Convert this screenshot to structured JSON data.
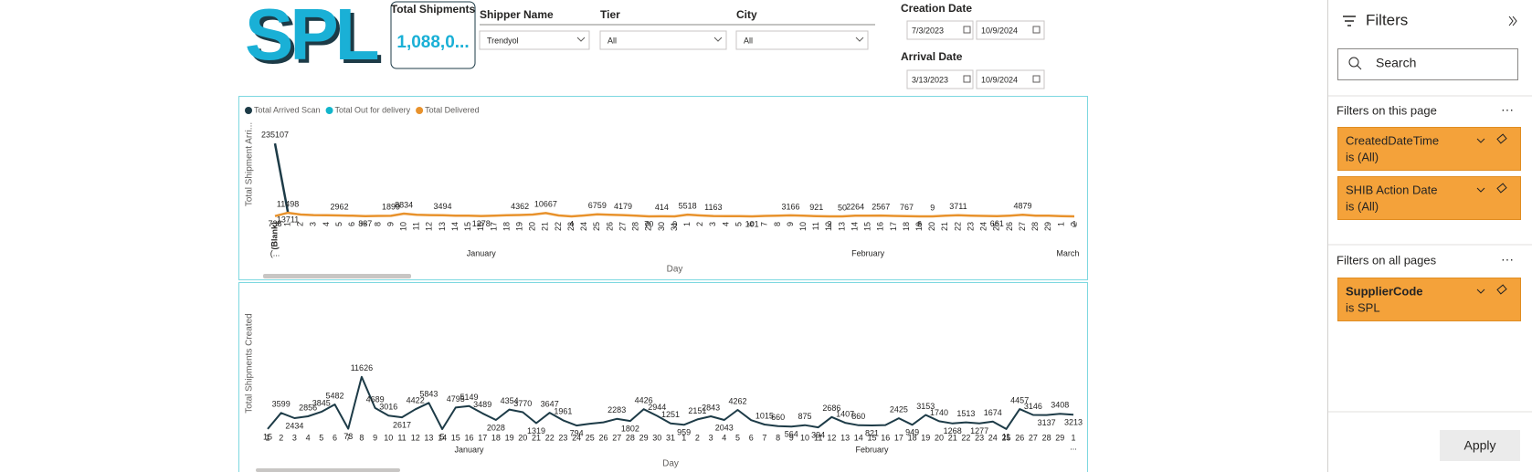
{
  "logo": {
    "text": "SPL"
  },
  "card": {
    "title": "Total Shipments",
    "value": "1,088,0..."
  },
  "slicers": [
    {
      "label": "Shipper Name",
      "value": "Trendyol"
    },
    {
      "label": "Tier",
      "value": "All"
    },
    {
      "label": "City",
      "value": "All"
    }
  ],
  "date_filters": [
    {
      "label": "Creation Date",
      "from": "7/3/2023",
      "to": "10/9/2024"
    },
    {
      "label": "Arrival Date",
      "from": "3/13/2023",
      "to": "10/9/2024"
    }
  ],
  "charts": [
    {
      "type": "line",
      "y_label": "Total Shipment Arri...",
      "x_label": "Day",
      "categories": [
        "(Blank)",
        "1",
        "2",
        "3",
        "4",
        "5",
        "6",
        "7",
        "8",
        "9",
        "10",
        "11",
        "12",
        "13",
        "14",
        "15",
        "16",
        "17",
        "18",
        "19",
        "20",
        "21",
        "22",
        "23",
        "24",
        "25",
        "26",
        "27",
        "28",
        "29",
        "30",
        "31",
        "1",
        "2",
        "3",
        "4",
        "5",
        "6",
        "7",
        "8",
        "9",
        "10",
        "11",
        "12",
        "13",
        "14",
        "15",
        "16",
        "17",
        "18",
        "19",
        "20",
        "21",
        "22",
        "23",
        "24",
        "25",
        "26",
        "27",
        "28",
        "29",
        "1",
        "2"
      ],
      "groups": [
        "(...",
        "January",
        "February",
        "March"
      ],
      "ylim": [
        0,
        250000
      ],
      "series": [
        {
          "name": "Total Arrived Scan",
          "color": "#1d3b47",
          "values": [
            235107,
            13711,
            null,
            null,
            null,
            null,
            null,
            null,
            null,
            null,
            null,
            null,
            null,
            null,
            null,
            null,
            null,
            null,
            null,
            null,
            null,
            null,
            null,
            null,
            null,
            null,
            null,
            null,
            null,
            null,
            null,
            null,
            null,
            null,
            null,
            null,
            null,
            null,
            null,
            null,
            null,
            null,
            null,
            null,
            null,
            null,
            null,
            null,
            null,
            null,
            null,
            null,
            null,
            null,
            null,
            null,
            null,
            null,
            null,
            null,
            null,
            null,
            null
          ],
          "value_labels": [
            "235107",
            "13711",
            null,
            null,
            null,
            null,
            null,
            null,
            null,
            null,
            null,
            null,
            null,
            null,
            null,
            null,
            null,
            null,
            null,
            null,
            null,
            null,
            null,
            null,
            null,
            null,
            null,
            null,
            null,
            null,
            null,
            null,
            null,
            null,
            null,
            null,
            null,
            null,
            null,
            null,
            null,
            null,
            null,
            null,
            null,
            null,
            null,
            null,
            null,
            null,
            null,
            null,
            null,
            null,
            null,
            null,
            null,
            null,
            null,
            null,
            null,
            null,
            null
          ]
        },
        {
          "name": "Total Out for delivery",
          "color": "#12b5cb"
        },
        {
          "name": "Total Delivered",
          "color": "#e8922c",
          "values": [
            738,
            11498,
            6000,
            4000,
            3500,
            2962,
            2000,
            887,
            1500,
            1899,
            8834,
            5000,
            4000,
            3494,
            2500,
            2000,
            1278,
            2500,
            3500,
            4362,
            6000,
            10667,
            3000,
            4,
            3000,
            6759,
            5000,
            4179,
            2000,
            70,
            414,
            6,
            5518,
            3000,
            1163,
            1000,
            800,
            101,
            1500,
            2500,
            3166,
            2000,
            921,
            2,
            50,
            2264,
            2400,
            2567,
            1500,
            767,
            6,
            9,
            2000,
            3711,
            2500,
            1500,
            661,
            2500,
            4879,
            2000,
            2000,
            1000,
            1
          ],
          "value_labels": [
            "738",
            "11498",
            null,
            null,
            null,
            "2962",
            null,
            "887",
            null,
            "1899",
            "8834",
            null,
            null,
            "3494",
            null,
            null,
            "1278",
            null,
            null,
            "4362",
            null,
            "10667",
            null,
            "4",
            null,
            "6759",
            null,
            "4179",
            null,
            "70",
            "414",
            "6",
            "5518",
            null,
            "1163",
            null,
            null,
            "101",
            null,
            null,
            "3166",
            null,
            "921",
            "2",
            "50",
            "2264",
            null,
            "2567",
            null,
            "767",
            "6",
            "9",
            null,
            "3711",
            null,
            null,
            "661",
            null,
            "4879",
            null,
            null,
            null,
            "1"
          ]
        }
      ]
    },
    {
      "type": "line",
      "y_label": "Total Shipments Created",
      "x_label": "Day",
      "categories": [
        "1",
        "2",
        "3",
        "4",
        "5",
        "6",
        "7",
        "8",
        "9",
        "10",
        "11",
        "12",
        "13",
        "14",
        "15",
        "16",
        "17",
        "18",
        "19",
        "20",
        "21",
        "22",
        "23",
        "24",
        "25",
        "26",
        "27",
        "28",
        "29",
        "30",
        "31",
        "1",
        "2",
        "3",
        "4",
        "5",
        "6",
        "7",
        "8",
        "9",
        "10",
        "11",
        "12",
        "13",
        "14",
        "15",
        "16",
        "17",
        "18",
        "19",
        "20",
        "21",
        "22",
        "23",
        "24",
        "25",
        "26",
        "27",
        "28",
        "29",
        "1"
      ],
      "groups": [
        "January",
        "February"
      ],
      "overflow_label": "...",
      "ylim": [
        0,
        12000
      ],
      "color": "#1d3b47",
      "values": [
        15,
        3599,
        2434,
        2856,
        3845,
        5482,
        73,
        11626,
        4689,
        3016,
        2617,
        4422,
        5843,
        5,
        4795,
        5149,
        3489,
        2028,
        4354,
        3770,
        1319,
        3647,
        1961,
        794,
        1200,
        1500,
        2283,
        1802,
        4426,
        2944,
        1251,
        959,
        2151,
        2843,
        2043,
        4262,
        2000,
        1015,
        660,
        564,
        875,
        394,
        2686,
        1407,
        860,
        821,
        900,
        2425,
        949,
        3153,
        1740,
        1268,
        1513,
        1277,
        1674,
        11,
        4457,
        3146,
        3137,
        3408,
        3213
      ],
      "value_labels": [
        "15",
        "3599",
        "2434",
        "2856",
        "3845",
        "5482",
        "73",
        "11626",
        "4689",
        "3016",
        "2617",
        "4422",
        "5843",
        "5",
        "4795",
        "5149",
        "3489",
        "2028",
        "4354",
        "3770",
        "1319",
        "3647",
        "1961",
        "794",
        null,
        null,
        "2283",
        "1802",
        "4426",
        "2944",
        "1251",
        "959",
        "2151",
        "2843",
        "2043",
        "4262",
        null,
        "1015",
        "660",
        "564",
        "875",
        "394",
        "2686",
        "1407",
        "860",
        "821",
        null,
        "2425",
        "949",
        "3153",
        "1740",
        "1268",
        "1513",
        "1277",
        "1674",
        "11",
        "4457",
        "3146",
        "3137",
        "3408",
        "3213"
      ]
    }
  ],
  "filters_pane": {
    "title": "Filters",
    "search": "Search",
    "page_section": "Filters on this page",
    "page_filters": [
      {
        "field": "CreatedDateTime",
        "state": "is (All)"
      },
      {
        "field": "SHIB Action Date",
        "state": "is (All)"
      }
    ],
    "all_section": "Filters on all pages",
    "all_filters": [
      {
        "field": "SupplierCode",
        "state": "is SPL"
      }
    ],
    "apply": "Apply"
  }
}
